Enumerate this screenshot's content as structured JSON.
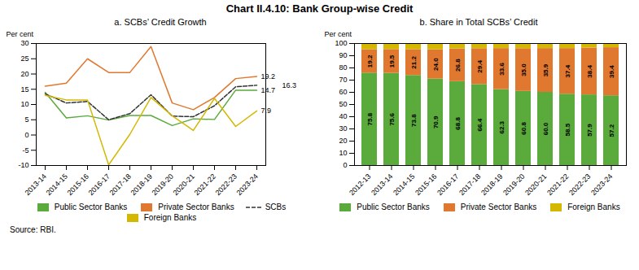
{
  "title": "Chart II.4.10: Bank Group-wise Credit",
  "source": "Source: RBI.",
  "chart_data": [
    {
      "type": "line",
      "title": "a. SCBs’ Credit Growth",
      "ylabel": "Per cent",
      "categories": [
        "2013-14",
        "2014-15",
        "2015-16",
        "2016-17",
        "2017-18",
        "2018-19",
        "2019-20",
        "2020-21",
        "2021-22",
        "2022-23",
        "2023-24"
      ],
      "series": [
        {
          "name": "Public Sector Banks",
          "color": "#5aaa3c",
          "line_style": "solid",
          "values": [
            14.0,
            5.6,
            6.3,
            4.9,
            6.4,
            6.4,
            3.1,
            5.3,
            5.1,
            14.7,
            14.7
          ]
        },
        {
          "name": "Private Sector Banks",
          "color": "#e07830",
          "line_style": "solid",
          "values": [
            16.0,
            17.0,
            25.0,
            20.5,
            20.5,
            29.0,
            10.5,
            8.3,
            12.3,
            18.5,
            19.2
          ]
        },
        {
          "name": "SCBs",
          "color": "#333333",
          "line_style": "dashed",
          "values": [
            13.5,
            10.5,
            11.0,
            5.0,
            7.0,
            13.2,
            6.2,
            6.0,
            9.6,
            15.8,
            16.3
          ]
        },
        {
          "name": "Foreign Banks",
          "color": "#d4b800",
          "line_style": "solid",
          "values": [
            13.0,
            11.5,
            11.5,
            -9.8,
            0.2,
            12.3,
            6.3,
            1.5,
            12.0,
            2.8,
            7.9
          ]
        }
      ],
      "annotations": [
        {
          "text": "19.2",
          "x": "2023-24",
          "y": 19.2
        },
        {
          "text": "16.3",
          "x": "2023-24",
          "y": 16.3
        },
        {
          "text": "14.7",
          "x": "2023-24",
          "y": 14.7
        },
        {
          "text": "7.9",
          "x": "2023-24",
          "y": 7.9
        }
      ],
      "ylim": [
        -10,
        30
      ],
      "yticks": [
        -10,
        -5,
        0,
        5,
        10,
        15,
        20,
        25,
        30
      ],
      "grid": false,
      "legend": "bottom"
    },
    {
      "type": "bar",
      "stacked": true,
      "title": "b. Share in Total SCBs’ Credit",
      "ylabel": "Per cent",
      "categories": [
        "2012-13",
        "2013-14",
        "2014-15",
        "2015-16",
        "2016-17",
        "2017-18",
        "2018-19",
        "2019-20",
        "2020-21",
        "2021-22",
        "2022-23",
        "2023-24"
      ],
      "series": [
        {
          "name": "Public Sector Banks",
          "color": "#5aaa3c",
          "data_labels": true,
          "values": [
            75.8,
            75.6,
            73.8,
            70.9,
            68.8,
            66.4,
            62.3,
            60.8,
            60.0,
            58.5,
            57.9,
            57.2
          ],
          "value_labels": [
            "75.8",
            "75.6",
            "73.8",
            "70.9",
            "68.8",
            "66.4",
            "62.3",
            "60.8",
            "60.0",
            "58.5",
            "57.9",
            "57.2"
          ]
        },
        {
          "name": "Private Sector Banks",
          "color": "#e07830",
          "data_labels": true,
          "values": [
            19.2,
            19.5,
            21.2,
            24.0,
            26.8,
            29.4,
            33.6,
            35.0,
            35.9,
            37.4,
            38.4,
            39.4
          ],
          "value_labels": [
            "19.2",
            "19.5",
            "21.2",
            "24.0",
            "26.8",
            "29.4",
            "33.6",
            "35.0",
            "35.9",
            "37.4",
            "38.4",
            "39.4"
          ]
        },
        {
          "name": "Foreign Banks",
          "color": "#d4b800",
          "data_labels": false,
          "values": [
            5.0,
            4.9,
            5.0,
            5.1,
            4.4,
            4.2,
            4.1,
            4.2,
            4.1,
            4.1,
            3.7,
            3.4
          ]
        }
      ],
      "ylim": [
        0,
        100
      ],
      "yticks": [
        0,
        10,
        20,
        30,
        40,
        50,
        60,
        70,
        80,
        90,
        100
      ],
      "grid": false,
      "legend": "bottom"
    }
  ]
}
